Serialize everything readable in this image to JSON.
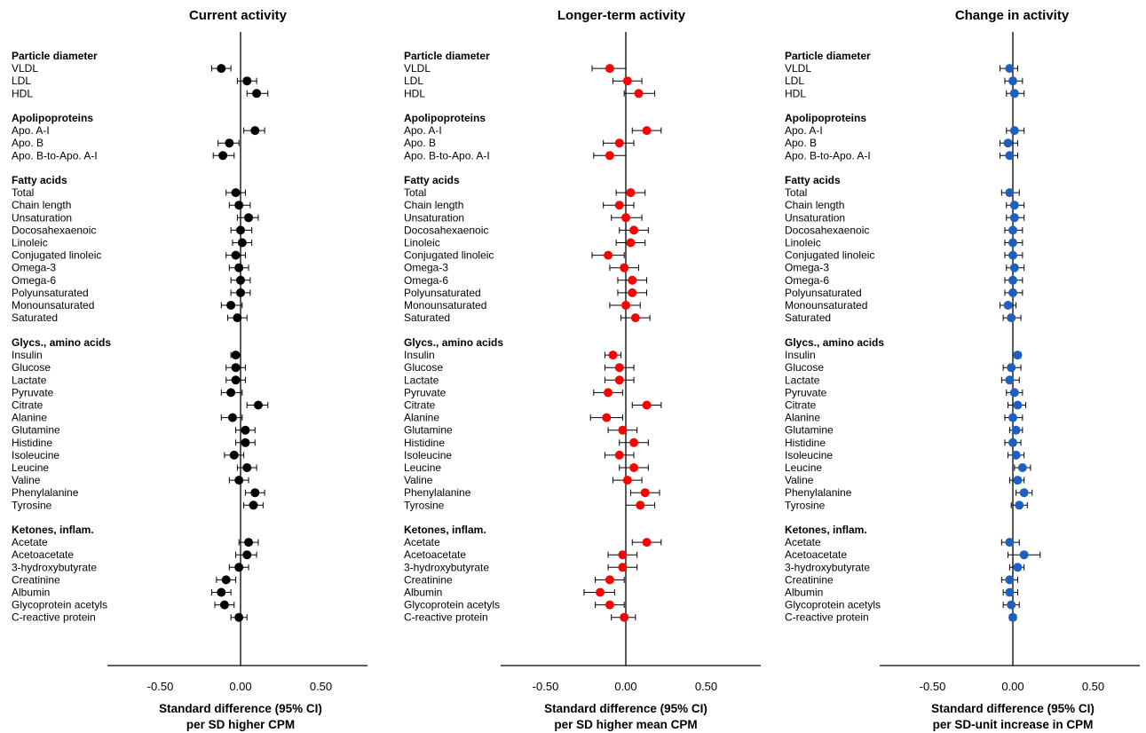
{
  "chart_data": [
    {
      "type": "forest",
      "title": "Current activity",
      "xlabel_line1": "Standard difference (95% CI)",
      "xlabel_line2": "per SD higher CPM",
      "x_ticks": [
        "-0.50",
        "0.00",
        "0.50"
      ],
      "xlim": [
        -0.85,
        0.85
      ],
      "color": "#000000",
      "groups": [
        {
          "name": "Particle diameter",
          "items": [
            {
              "label": "VLDL",
              "est": -0.12,
              "lo": -0.18,
              "hi": -0.06
            },
            {
              "label": "LDL",
              "est": 0.04,
              "lo": -0.02,
              "hi": 0.1
            },
            {
              "label": "HDL",
              "est": 0.1,
              "lo": 0.04,
              "hi": 0.17
            }
          ]
        },
        {
          "name": "Apolipoproteins",
          "items": [
            {
              "label": "Apo. A-I",
              "est": 0.09,
              "lo": 0.02,
              "hi": 0.15
            },
            {
              "label": "Apo. B",
              "est": -0.07,
              "lo": -0.14,
              "hi": -0.01
            },
            {
              "label": "Apo. B-to-Apo. A-I",
              "est": -0.11,
              "lo": -0.17,
              "hi": -0.04
            }
          ]
        },
        {
          "name": "Fatty acids",
          "items": [
            {
              "label": "Total",
              "est": -0.03,
              "lo": -0.09,
              "hi": 0.03
            },
            {
              "label": "Chain length",
              "est": -0.01,
              "lo": -0.07,
              "hi": 0.06
            },
            {
              "label": "Unsaturation",
              "est": 0.05,
              "lo": -0.02,
              "hi": 0.11
            },
            {
              "label": "Docosahexaenoic",
              "est": 0.0,
              "lo": -0.06,
              "hi": 0.07
            },
            {
              "label": "Linoleic",
              "est": 0.01,
              "lo": -0.05,
              "hi": 0.07
            },
            {
              "label": "Conjugated linoleic",
              "est": -0.03,
              "lo": -0.09,
              "hi": 0.03
            },
            {
              "label": "Omega-3",
              "est": -0.01,
              "lo": -0.07,
              "hi": 0.05
            },
            {
              "label": "Omega-6",
              "est": 0.0,
              "lo": -0.06,
              "hi": 0.06
            },
            {
              "label": "Polyunsaturated",
              "est": 0.0,
              "lo": -0.06,
              "hi": 0.06
            },
            {
              "label": "Monounsaturated",
              "est": -0.06,
              "lo": -0.12,
              "hi": 0.01
            },
            {
              "label": "Saturated",
              "est": -0.02,
              "lo": -0.08,
              "hi": 0.04
            }
          ]
        },
        {
          "name": "Glycs., amino acids",
          "items": [
            {
              "label": "Insulin",
              "est": -0.03,
              "lo": -0.06,
              "hi": 0.0
            },
            {
              "label": "Glucose",
              "est": -0.03,
              "lo": -0.09,
              "hi": 0.03
            },
            {
              "label": "Lactate",
              "est": -0.03,
              "lo": -0.09,
              "hi": 0.03
            },
            {
              "label": "Pyruvate",
              "est": -0.06,
              "lo": -0.12,
              "hi": 0.01
            },
            {
              "label": "Citrate",
              "est": 0.11,
              "lo": 0.04,
              "hi": 0.17
            },
            {
              "label": "Alanine",
              "est": -0.05,
              "lo": -0.12,
              "hi": 0.01
            },
            {
              "label": "Glutamine",
              "est": 0.03,
              "lo": -0.03,
              "hi": 0.09
            },
            {
              "label": "Histidine",
              "est": 0.03,
              "lo": -0.03,
              "hi": 0.09
            },
            {
              "label": "Isoleucine",
              "est": -0.04,
              "lo": -0.1,
              "hi": 0.02
            },
            {
              "label": "Leucine",
              "est": 0.04,
              "lo": -0.02,
              "hi": 0.1
            },
            {
              "label": "Valine",
              "est": -0.01,
              "lo": -0.07,
              "hi": 0.05
            },
            {
              "label": "Phenylalanine",
              "est": 0.09,
              "lo": 0.03,
              "hi": 0.15
            },
            {
              "label": "Tyrosine",
              "est": 0.08,
              "lo": 0.02,
              "hi": 0.14
            }
          ]
        },
        {
          "name": "Ketones, inflam.",
          "items": [
            {
              "label": "Acetate",
              "est": 0.05,
              "lo": -0.01,
              "hi": 0.11
            },
            {
              "label": "Acetoacetate",
              "est": 0.04,
              "lo": -0.03,
              "hi": 0.1
            },
            {
              "label": "3-hydroxybutyrate",
              "est": -0.01,
              "lo": -0.07,
              "hi": 0.05
            },
            {
              "label": "Creatinine",
              "est": -0.09,
              "lo": -0.15,
              "hi": -0.03
            },
            {
              "label": "Albumin",
              "est": -0.12,
              "lo": -0.18,
              "hi": -0.06
            },
            {
              "label": "Glycoprotein acetyls",
              "est": -0.1,
              "lo": -0.16,
              "hi": -0.04
            },
            {
              "label": "C-reactive protein",
              "est": -0.01,
              "lo": -0.06,
              "hi": 0.04
            }
          ]
        }
      ]
    },
    {
      "type": "forest",
      "title": "Longer-term activity",
      "xlabel_line1": "Standard difference (95% CI)",
      "xlabel_line2": "per SD higher mean CPM",
      "x_ticks": [
        "-0.50",
        "0.00",
        "0.50"
      ],
      "xlim": [
        -0.85,
        0.85
      ],
      "color": "#ff0000",
      "groups": [
        {
          "name": "Particle diameter",
          "items": [
            {
              "label": "VLDL",
              "est": -0.1,
              "lo": -0.21,
              "hi": 0.0
            },
            {
              "label": "LDL",
              "est": 0.01,
              "lo": -0.08,
              "hi": 0.1
            },
            {
              "label": "HDL",
              "est": 0.08,
              "lo": -0.01,
              "hi": 0.18
            }
          ]
        },
        {
          "name": "Apolipoproteins",
          "items": [
            {
              "label": "Apo. A-I",
              "est": 0.13,
              "lo": 0.04,
              "hi": 0.22
            },
            {
              "label": "Apo. B",
              "est": -0.04,
              "lo": -0.14,
              "hi": 0.05
            },
            {
              "label": "Apo. B-to-Apo. A-I",
              "est": -0.1,
              "lo": -0.2,
              "hi": 0.0
            }
          ]
        },
        {
          "name": "Fatty acids",
          "items": [
            {
              "label": "Total",
              "est": 0.03,
              "lo": -0.06,
              "hi": 0.12
            },
            {
              "label": "Chain length",
              "est": -0.04,
              "lo": -0.14,
              "hi": 0.05
            },
            {
              "label": "Unsaturation",
              "est": 0.0,
              "lo": -0.09,
              "hi": 0.1
            },
            {
              "label": "Docosahexaenoic",
              "est": 0.05,
              "lo": -0.04,
              "hi": 0.14
            },
            {
              "label": "Linoleic",
              "est": 0.03,
              "lo": -0.06,
              "hi": 0.12
            },
            {
              "label": "Conjugated linoleic",
              "est": -0.11,
              "lo": -0.21,
              "hi": -0.01
            },
            {
              "label": "Omega-3",
              "est": -0.01,
              "lo": -0.1,
              "hi": 0.08
            },
            {
              "label": "Omega-6",
              "est": 0.04,
              "lo": -0.05,
              "hi": 0.13
            },
            {
              "label": "Polyunsaturated",
              "est": 0.04,
              "lo": -0.05,
              "hi": 0.13
            },
            {
              "label": "Monounsaturated",
              "est": 0.0,
              "lo": -0.1,
              "hi": 0.09
            },
            {
              "label": "Saturated",
              "est": 0.06,
              "lo": -0.03,
              "hi": 0.15
            }
          ]
        },
        {
          "name": "Glycs., amino acids",
          "items": [
            {
              "label": "Insulin",
              "est": -0.08,
              "lo": -0.13,
              "hi": -0.03
            },
            {
              "label": "Glucose",
              "est": -0.04,
              "lo": -0.13,
              "hi": 0.05
            },
            {
              "label": "Lactate",
              "est": -0.04,
              "lo": -0.13,
              "hi": 0.05
            },
            {
              "label": "Pyruvate",
              "est": -0.11,
              "lo": -0.2,
              "hi": -0.02
            },
            {
              "label": "Citrate",
              "est": 0.13,
              "lo": 0.04,
              "hi": 0.22
            },
            {
              "label": "Alanine",
              "est": -0.12,
              "lo": -0.22,
              "hi": -0.02
            },
            {
              "label": "Glutamine",
              "est": -0.02,
              "lo": -0.11,
              "hi": 0.07
            },
            {
              "label": "Histidine",
              "est": 0.05,
              "lo": -0.04,
              "hi": 0.14
            },
            {
              "label": "Isoleucine",
              "est": -0.04,
              "lo": -0.13,
              "hi": 0.05
            },
            {
              "label": "Leucine",
              "est": 0.05,
              "lo": -0.04,
              "hi": 0.14
            },
            {
              "label": "Valine",
              "est": 0.01,
              "lo": -0.08,
              "hi": 0.1
            },
            {
              "label": "Phenylalanine",
              "est": 0.12,
              "lo": 0.03,
              "hi": 0.21
            },
            {
              "label": "Tyrosine",
              "est": 0.09,
              "lo": 0.0,
              "hi": 0.18
            }
          ]
        },
        {
          "name": "Ketones, inflam.",
          "items": [
            {
              "label": "Acetate",
              "est": 0.13,
              "lo": 0.04,
              "hi": 0.22
            },
            {
              "label": "Acetoacetate",
              "est": -0.02,
              "lo": -0.11,
              "hi": 0.07
            },
            {
              "label": "3-hydroxybutyrate",
              "est": -0.02,
              "lo": -0.11,
              "hi": 0.07
            },
            {
              "label": "Creatinine",
              "est": -0.1,
              "lo": -0.19,
              "hi": -0.01
            },
            {
              "label": "Albumin",
              "est": -0.16,
              "lo": -0.26,
              "hi": -0.07
            },
            {
              "label": "Glycoprotein acetyls",
              "est": -0.1,
              "lo": -0.19,
              "hi": -0.01
            },
            {
              "label": "C-reactive protein",
              "est": -0.01,
              "lo": -0.09,
              "hi": 0.06
            }
          ]
        }
      ]
    },
    {
      "type": "forest",
      "title": "Change in activity",
      "xlabel_line1": "Standard difference (95% CI)",
      "xlabel_line2": "per SD-unit increase in CPM",
      "x_ticks": [
        "-0.50",
        "0.00",
        "0.50"
      ],
      "xlim": [
        -0.85,
        0.85
      ],
      "color": "#1f5fbf",
      "groups": [
        {
          "name": "Particle diameter",
          "items": [
            {
              "label": "VLDL",
              "est": -0.02,
              "lo": -0.08,
              "hi": 0.03
            },
            {
              "label": "LDL",
              "est": 0.0,
              "lo": -0.05,
              "hi": 0.06
            },
            {
              "label": "HDL",
              "est": 0.01,
              "lo": -0.04,
              "hi": 0.07
            }
          ]
        },
        {
          "name": "Apolipoproteins",
          "items": [
            {
              "label": "Apo. A-I",
              "est": 0.01,
              "lo": -0.04,
              "hi": 0.07
            },
            {
              "label": "Apo. B",
              "est": -0.03,
              "lo": -0.08,
              "hi": 0.03
            },
            {
              "label": "Apo. B-to-Apo. A-I",
              "est": -0.02,
              "lo": -0.08,
              "hi": 0.03
            }
          ]
        },
        {
          "name": "Fatty acids",
          "items": [
            {
              "label": "Total",
              "est": -0.02,
              "lo": -0.07,
              "hi": 0.04
            },
            {
              "label": "Chain length",
              "est": 0.01,
              "lo": -0.04,
              "hi": 0.07
            },
            {
              "label": "Unsaturation",
              "est": 0.01,
              "lo": -0.04,
              "hi": 0.07
            },
            {
              "label": "Docosahexaenoic",
              "est": 0.0,
              "lo": -0.05,
              "hi": 0.06
            },
            {
              "label": "Linoleic",
              "est": 0.0,
              "lo": -0.05,
              "hi": 0.06
            },
            {
              "label": "Conjugated linoleic",
              "est": 0.0,
              "lo": -0.05,
              "hi": 0.06
            },
            {
              "label": "Omega-3",
              "est": 0.01,
              "lo": -0.04,
              "hi": 0.07
            },
            {
              "label": "Omega-6",
              "est": 0.0,
              "lo": -0.05,
              "hi": 0.06
            },
            {
              "label": "Polyunsaturated",
              "est": 0.0,
              "lo": -0.05,
              "hi": 0.06
            },
            {
              "label": "Monounsaturated",
              "est": -0.03,
              "lo": -0.08,
              "hi": 0.02
            },
            {
              "label": "Saturated",
              "est": -0.01,
              "lo": -0.06,
              "hi": 0.05
            }
          ]
        },
        {
          "name": "Glycs., amino acids",
          "items": [
            {
              "label": "Insulin",
              "est": 0.03,
              "lo": 0.01,
              "hi": 0.05
            },
            {
              "label": "Glucose",
              "est": -0.01,
              "lo": -0.06,
              "hi": 0.05
            },
            {
              "label": "Lactate",
              "est": -0.02,
              "lo": -0.07,
              "hi": 0.04
            },
            {
              "label": "Pyruvate",
              "est": 0.01,
              "lo": -0.04,
              "hi": 0.06
            },
            {
              "label": "Citrate",
              "est": 0.03,
              "lo": -0.03,
              "hi": 0.08
            },
            {
              "label": "Alanine",
              "est": 0.0,
              "lo": -0.05,
              "hi": 0.06
            },
            {
              "label": "Glutamine",
              "est": 0.02,
              "lo": -0.02,
              "hi": 0.06
            },
            {
              "label": "Histidine",
              "est": 0.0,
              "lo": -0.05,
              "hi": 0.05
            },
            {
              "label": "Isoleucine",
              "est": 0.02,
              "lo": -0.03,
              "hi": 0.07
            },
            {
              "label": "Leucine",
              "est": 0.06,
              "lo": 0.01,
              "hi": 0.11
            },
            {
              "label": "Valine",
              "est": 0.03,
              "lo": -0.02,
              "hi": 0.07
            },
            {
              "label": "Phenylalanine",
              "est": 0.07,
              "lo": 0.02,
              "hi": 0.12
            },
            {
              "label": "Tyrosine",
              "est": 0.04,
              "lo": -0.01,
              "hi": 0.09
            }
          ]
        },
        {
          "name": "Ketones, inflam.",
          "items": [
            {
              "label": "Acetate",
              "est": -0.02,
              "lo": -0.07,
              "hi": 0.04
            },
            {
              "label": "Acetoacetate",
              "est": 0.07,
              "lo": -0.03,
              "hi": 0.17
            },
            {
              "label": "3-hydroxybutyrate",
              "est": 0.03,
              "lo": -0.02,
              "hi": 0.07
            },
            {
              "label": "Creatinine",
              "est": -0.02,
              "lo": -0.07,
              "hi": 0.03
            },
            {
              "label": "Albumin",
              "est": -0.02,
              "lo": -0.06,
              "hi": 0.03
            },
            {
              "label": "Glycoprotein acetyls",
              "est": -0.01,
              "lo": -0.06,
              "hi": 0.04
            },
            {
              "label": "C-reactive protein",
              "est": 0.0,
              "lo": -0.02,
              "hi": 0.02
            }
          ]
        }
      ]
    }
  ]
}
